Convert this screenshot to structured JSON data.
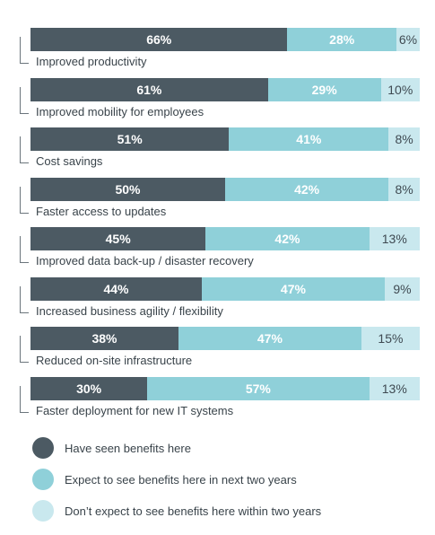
{
  "chart_data": {
    "type": "bar",
    "orientation": "horizontal",
    "stacked": true,
    "categories": [
      "Improved productivity",
      "Improved mobility for employees",
      "Cost savings",
      "Faster access to updates",
      "Improved data back-up / disaster recovery",
      "Increased business agility / flexibility",
      "Reduced on-site infrastructure",
      "Faster deployment for new IT systems"
    ],
    "series": [
      {
        "name": "Have seen benefits here",
        "color": "#4c5a63",
        "values": [
          66,
          61,
          51,
          50,
          45,
          44,
          38,
          30
        ]
      },
      {
        "name": "Expect to see benefits here in next two years",
        "color": "#8fd0d9",
        "values": [
          28,
          29,
          41,
          42,
          42,
          47,
          47,
          57
        ]
      },
      {
        "name": "Don’t expect to see benefits here within two years",
        "color": "#c9e8ee",
        "values": [
          6,
          10,
          8,
          8,
          13,
          9,
          15,
          13
        ]
      }
    ],
    "value_suffix": "%",
    "legend_position": "bottom-left",
    "grid": false
  }
}
